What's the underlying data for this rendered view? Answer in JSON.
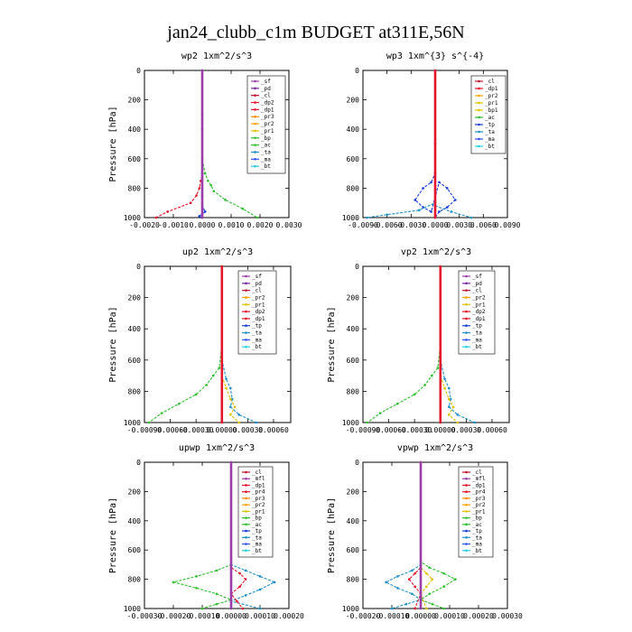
{
  "figure_title": "jan24_clubb_c1m  BUDGET at311E,56N",
  "chart_data": [
    {
      "type": "line",
      "title": "wp2   1xm^2/s^3",
      "ylabel": "Pressure [hPa]",
      "ylim": [
        1000,
        0
      ],
      "y_ticks": [
        0,
        200,
        400,
        600,
        800,
        1000
      ],
      "x_range": [
        -0.002,
        0.003
      ],
      "x_ticks": [
        -0.002,
        -0.001,
        0.0,
        0.001,
        0.002,
        0.003
      ],
      "x_tick_labels": [
        "-0.0020",
        "-0.0010",
        "0.0000",
        "0.0010",
        "0.0020",
        "0.0030"
      ],
      "legend": [
        "_sf",
        "_pd",
        "_cl",
        "_dp2",
        "_dp1",
        "_pr3",
        "_pr2",
        "_pr1",
        "_bp",
        "_ac",
        "_ta",
        "_ma",
        "_bt"
      ],
      "series": [
        {
          "name": "_dp1",
          "color": "#e4142a",
          "x": [
            0,
            0,
            0,
            0,
            -5e-05,
            -0.0001,
            -0.0002,
            -0.0004,
            -0.0012,
            -0.0016
          ],
          "y": [
            0,
            300,
            600,
            700,
            750,
            800,
            850,
            900,
            960,
            1000
          ]
        },
        {
          "name": "_bp",
          "color": "#2fbf2f",
          "x": [
            0,
            0,
            0,
            0.0001,
            0.0002,
            0.0003,
            0.0004,
            0.0008,
            0.0014,
            0.0019
          ],
          "y": [
            0,
            300,
            600,
            700,
            750,
            780,
            820,
            880,
            940,
            1000
          ]
        },
        {
          "name": "_ac",
          "color": "#1840d8",
          "x": [
            0,
            0,
            0,
            0,
            0,
            0.0001,
            -0.0001,
            0
          ],
          "y": [
            0,
            400,
            700,
            850,
            920,
            960,
            990,
            1000
          ]
        },
        {
          "name": "_cl",
          "color": "#9b3da8",
          "x": [
            0,
            0
          ],
          "y": [
            0,
            1000
          ]
        }
      ]
    },
    {
      "type": "line",
      "title": "wp3   1xm^{3} s^{-4}",
      "ylabel": "",
      "ylim": [
        1000,
        0
      ],
      "y_ticks": [
        0,
        200,
        400,
        600,
        800,
        1000
      ],
      "x_range": [
        -0.009,
        0.009
      ],
      "x_ticks": [
        -0.009,
        -0.006,
        -0.003,
        0.0,
        0.003,
        0.006,
        0.009
      ],
      "x_tick_labels": [
        "-0.0090",
        "-0.0060",
        "-0.0030",
        "0.0000",
        "0.0030",
        "0.0060",
        "0.0090"
      ],
      "legend": [
        "_cl",
        "_dp1",
        "_pr2",
        "_pr1",
        "_bp1",
        "_ac",
        "_tp",
        "_ta",
        "_ma",
        "_bt"
      ],
      "series": [
        {
          "name": "_tp",
          "color": "#1840d8",
          "x": [
            0,
            0,
            0,
            -0.0005,
            -0.0015,
            -0.0025,
            -0.0015,
            -0.0005,
            0.0005,
            0.0015,
            0.0025,
            0.0015,
            0.0005,
            0
          ],
          "y": [
            0,
            500,
            700,
            760,
            800,
            880,
            930,
            960,
            760,
            800,
            880,
            930,
            960,
            1000
          ]
        },
        {
          "name": "_ta",
          "color": "#1e90c8",
          "x": [
            0,
            0,
            -0.002,
            -0.006,
            -0.0085
          ],
          "y": [
            0,
            900,
            950,
            980,
            1000
          ]
        },
        {
          "name": "_ta2",
          "color": "#1e90c8",
          "x": [
            0,
            0.002,
            0.0045
          ],
          "y": [
            920,
            960,
            1000
          ]
        },
        {
          "name": "_cl",
          "color": "#e4142a",
          "x": [
            0,
            0
          ],
          "y": [
            0,
            1000
          ]
        }
      ]
    },
    {
      "type": "line",
      "title": "up2   1xm^2/s^3",
      "ylabel": "Pressure [hPa]",
      "ylim": [
        1000,
        0
      ],
      "y_ticks": [
        0,
        200,
        400,
        600,
        800,
        1000
      ],
      "x_range": [
        -0.0009,
        0.0008
      ],
      "x_ticks": [
        -0.0009,
        -0.0006,
        -0.0003,
        0.0,
        0.0003,
        0.0006
      ],
      "x_tick_labels": [
        "-0.00090",
        "-0.00060",
        "-0.00030",
        "0.00000",
        "0.00030",
        "0.00060"
      ],
      "legend": [
        "_sf",
        "_pd",
        "_cl",
        "_pr2",
        "_pr1",
        "_dp2",
        "_dp1",
        "_tp",
        "_ta",
        "_ma",
        "_bt"
      ],
      "series": [
        {
          "name": "_dp1",
          "color": "#2fbf2f",
          "x": [
            0,
            0,
            -3e-05,
            -0.0001,
            -0.00018,
            -0.0003,
            -0.0005,
            -0.0007,
            -0.00085
          ],
          "y": [
            0,
            500,
            650,
            700,
            760,
            820,
            880,
            940,
            1000
          ]
        },
        {
          "name": "_ta",
          "color": "#1e90c8",
          "x": [
            0,
            0,
            5e-05,
            0.0001,
            0.00012,
            0.0001,
            0.0002,
            0.0004
          ],
          "y": [
            0,
            600,
            720,
            780,
            850,
            900,
            950,
            1000
          ]
        },
        {
          "name": "_pr1",
          "color": "#e0c000",
          "x": [
            0,
            0,
            5e-05,
            0.0001,
            0.00015,
            0.0001,
            0.0002
          ],
          "y": [
            0,
            700,
            780,
            850,
            900,
            950,
            1000
          ]
        },
        {
          "name": "_cl",
          "color": "#e4142a",
          "x": [
            0,
            0
          ],
          "y": [
            0,
            1000
          ]
        }
      ]
    },
    {
      "type": "line",
      "title": "vp2   1xm^2/s^3",
      "ylabel": "Pressure [hPa]",
      "ylim": [
        1000,
        0
      ],
      "y_ticks": [
        0,
        200,
        400,
        600,
        800,
        1000
      ],
      "x_range": [
        -0.0009,
        0.0008
      ],
      "x_ticks": [
        -0.0009,
        -0.0006,
        -0.0003,
        0.0,
        0.0003,
        0.0006
      ],
      "x_tick_labels": [
        "-0.00090",
        "-0.00060",
        "-0.00030",
        "0.00000",
        "0.00030",
        "0.00060"
      ],
      "legend": [
        "_sf",
        "_pd",
        "_cl",
        "_pr2",
        "_pr1",
        "_dp2",
        "_dp1",
        "_tp",
        "_ta",
        "_ma",
        "_bt"
      ],
      "series": [
        {
          "name": "_dp1",
          "color": "#2fbf2f",
          "x": [
            0,
            0,
            -3e-05,
            -0.0001,
            -0.00018,
            -0.0003,
            -0.0005,
            -0.0007,
            -0.00085
          ],
          "y": [
            0,
            500,
            650,
            700,
            760,
            820,
            880,
            940,
            1000
          ]
        },
        {
          "name": "_ta",
          "color": "#1e90c8",
          "x": [
            0,
            0,
            5e-05,
            0.0001,
            0.00012,
            0.0001,
            0.0002,
            0.0004
          ],
          "y": [
            0,
            600,
            720,
            780,
            850,
            900,
            950,
            1000
          ]
        },
        {
          "name": "_pr1",
          "color": "#e0c000",
          "x": [
            0,
            0,
            5e-05,
            0.0001,
            0.00015,
            0.0001,
            0.0002
          ],
          "y": [
            0,
            700,
            780,
            850,
            900,
            950,
            1000
          ]
        },
        {
          "name": "_cl",
          "color": "#e4142a",
          "x": [
            0,
            0
          ],
          "y": [
            0,
            1000
          ]
        }
      ]
    },
    {
      "type": "line",
      "title": "upwp   1xm^2/s^3",
      "ylabel": "Pressure [hPa]",
      "ylim": [
        1000,
        0
      ],
      "y_ticks": [
        0,
        200,
        400,
        600,
        800,
        1000
      ],
      "x_range": [
        -0.0003,
        0.0002
      ],
      "x_ticks": [
        -0.0003,
        -0.0002,
        -0.0001,
        0.0,
        0.0001,
        0.0002
      ],
      "x_tick_labels": [
        "-0.00030",
        "-0.00020",
        "-0.00010",
        "0.00000",
        "0.00010",
        "0.00020"
      ],
      "legend": [
        "_cl",
        "_mfl",
        "_dp1",
        "_pr4",
        "_pr3",
        "_pr2",
        "_pr1",
        "_bp",
        "_ac",
        "_tp",
        "_ta",
        "_ma",
        "_bt"
      ],
      "series": [
        {
          "name": "_bp",
          "color": "#2fbf2f",
          "x": [
            0,
            0,
            -5e-05,
            -0.00012,
            -0.0002,
            -0.00012,
            -5e-05,
            0,
            -5e-05,
            -0.0001
          ],
          "y": [
            0,
            700,
            740,
            780,
            820,
            860,
            900,
            940,
            970,
            1000
          ]
        },
        {
          "name": "_ta",
          "color": "#1e90c8",
          "x": [
            0,
            0,
            5e-05,
            0.0001,
            0.00015,
            0.0001,
            5e-05,
            0,
            0.0001
          ],
          "y": [
            0,
            700,
            740,
            780,
            820,
            870,
            910,
            950,
            1000
          ]
        },
        {
          "name": "_dp1",
          "color": "#e4142a",
          "x": [
            0,
            0,
            3e-05,
            5e-05,
            3e-05,
            0,
            2e-05,
            4e-05
          ],
          "y": [
            0,
            720,
            760,
            800,
            850,
            900,
            950,
            1000
          ]
        },
        {
          "name": "_cl",
          "color": "#9b3da8",
          "x": [
            0,
            0
          ],
          "y": [
            0,
            1000
          ]
        }
      ]
    },
    {
      "type": "line",
      "title": "vpwp   1xm^2/s^3",
      "ylabel": "Pressure [hPa]",
      "ylim": [
        1000,
        0
      ],
      "y_ticks": [
        0,
        200,
        400,
        600,
        800,
        1000
      ],
      "x_range": [
        -0.0002,
        0.0003
      ],
      "x_ticks": [
        -0.0002,
        -0.0001,
        0.0,
        0.0001,
        0.0002,
        0.0003
      ],
      "x_tick_labels": [
        "-0.00020",
        "-0.00010",
        "0.00000",
        "0.00010",
        "0.00020",
        "0.00030"
      ],
      "legend": [
        "_cl",
        "_mfl",
        "_dp1",
        "_pr4",
        "_pr3",
        "_pr2",
        "_pr1",
        "_bp",
        "_ac",
        "_tp",
        "_ta",
        "_ma",
        "_bt"
      ],
      "series": [
        {
          "name": "_bp",
          "color": "#2fbf2f",
          "x": [
            0,
            0,
            3e-05,
            8e-05,
            0.00012,
            8e-05,
            3e-05,
            0,
            4e-05,
            8e-05
          ],
          "y": [
            0,
            680,
            720,
            760,
            800,
            850,
            900,
            940,
            970,
            1000
          ]
        },
        {
          "name": "_ta",
          "color": "#1e90c8",
          "x": [
            0,
            0,
            -3e-05,
            -8e-05,
            -0.00012,
            -8e-05,
            -3e-05,
            0,
            -5e-05,
            -0.0001
          ],
          "y": [
            0,
            700,
            740,
            780,
            820,
            860,
            900,
            940,
            970,
            1000
          ]
        },
        {
          "name": "_pr1",
          "color": "#e0c000",
          "x": [
            0,
            0,
            2e-05,
            4e-05,
            2e-05,
            0,
            2e-05
          ],
          "y": [
            0,
            720,
            760,
            800,
            850,
            900,
            1000
          ]
        },
        {
          "name": "_dp1",
          "color": "#e4142a",
          "x": [
            0,
            0,
            -2e-05,
            -4e-05,
            -2e-05,
            0,
            -2e-05
          ],
          "y": [
            0,
            720,
            760,
            800,
            850,
            900,
            1000
          ]
        },
        {
          "name": "_cl",
          "color": "#9b3da8",
          "x": [
            0,
            0
          ],
          "y": [
            0,
            1000
          ]
        }
      ]
    }
  ],
  "legend_colors": {
    "_sf": "#9b3da8",
    "_pd": "#7a2aa0",
    "_cl": "#c0142a",
    "_mfl": "#9b3da8",
    "_dp2": "#e4142a",
    "_dp1": "#e4142a",
    "_pr4": "#e4142a",
    "_pr3": "#ff8a00",
    "_pr2": "#ffa000",
    "_pr1": "#e0c000",
    "_bp": "#2fbf2f",
    "_bp1": "#e0c000",
    "_ac": "#2fbf2f",
    "_tp": "#1840d8",
    "_ta": "#1e90c8",
    "_ma": "#3050ff",
    "_bt": "#22d0e0"
  }
}
